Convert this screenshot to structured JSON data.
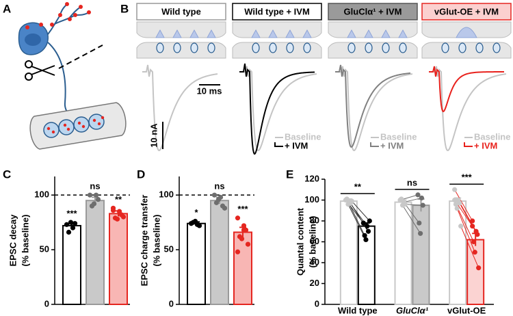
{
  "panel_labels": [
    "A",
    "B",
    "C",
    "D",
    "E"
  ],
  "traces": {
    "conditions": [
      "Wild type",
      "Wild type + IVM",
      "GluClα¹ + IVM",
      "vGlut-OE + IVM"
    ],
    "legend": [
      "Baseline",
      "+ IVM"
    ],
    "scale_bars": [
      "10 ms",
      "10 nA"
    ],
    "baseline_color": "#c4c4c4",
    "ivm_colors": [
      "#000000",
      "#808080",
      "#e8211c"
    ]
  },
  "chart_data": [
    {
      "type": "bar",
      "ylabel": [
        "EPSC decay",
        "(% baseline)"
      ],
      "categories": [
        null,
        null,
        null
      ],
      "ylim": [
        0,
        117
      ],
      "yticks": [
        0,
        50,
        100
      ],
      "reference_line": 100,
      "series": [
        {
          "values": [
            72,
            95,
            83
          ],
          "errors": [
            2,
            3,
            2.5
          ],
          "colors": [
            "#ffffff",
            "#c9c9c9",
            "#f8b6b4"
          ],
          "edge_colors": [
            "#000000",
            "#9a9a9a",
            "#e52620"
          ],
          "point_colors": [
            "#000000",
            "#6e6e6e",
            "#e52620"
          ],
          "points": [
            [
              73,
              70,
              74,
              66,
              75
            ],
            [
              100,
              100,
              96,
              90,
              92
            ],
            [
              88,
              85,
              82,
              79,
              78,
              80,
              86
            ]
          ]
        }
      ],
      "annotations": [
        "***",
        "ns",
        "**"
      ]
    },
    {
      "type": "bar",
      "ylabel": [
        "EPSC charge transfer",
        "(% baseline)"
      ],
      "categories": [
        null,
        null,
        null
      ],
      "ylim": [
        0,
        117
      ],
      "yticks": [
        0,
        50,
        100
      ],
      "reference_line": 100,
      "series": [
        {
          "values": [
            74,
            95,
            66
          ],
          "errors": [
            1.5,
            3,
            4.5
          ],
          "colors": [
            "#ffffff",
            "#c9c9c9",
            "#f8b6b4"
          ],
          "edge_colors": [
            "#000000",
            "#9a9a9a",
            "#e52620"
          ],
          "point_colors": [
            "#000000",
            "#6e6e6e",
            "#e52620"
          ],
          "points": [
            [
              74,
              73,
              72,
              75,
              76
            ],
            [
              100,
              98,
              90,
              93,
              96,
              88
            ],
            [
              79,
              72,
              68,
              62,
              60,
              55,
              48,
              68
            ]
          ]
        }
      ],
      "annotations": [
        "*",
        "ns",
        "***"
      ]
    },
    {
      "type": "bar",
      "ylabel": [
        "Quantal content",
        "(% baseline)"
      ],
      "categories": [
        "Wild type",
        "GluClα¹",
        "vGlut-OE"
      ],
      "category_italic": [
        false,
        true,
        false
      ],
      "ylim": [
        0,
        120
      ],
      "yticks": [
        0,
        20,
        40,
        60,
        80,
        100,
        120
      ],
      "series": [
        {
          "values": [
            99,
            98,
            99
          ],
          "errors": [
            2,
            2,
            3
          ],
          "colors": [
            "#ffffff",
            "#ffffff",
            "#ffffff"
          ],
          "edge_colors": [
            "#c8c8c8",
            "#c8c8c8",
            "#c8c8c8"
          ],
          "point_colors": [
            "#c8c8c8",
            "#c8c8c8",
            "#c8c8c8"
          ],
          "points": [
            [
              100,
              98,
              97,
              101,
              96,
              99
            ],
            [
              100,
              98,
              96,
              101,
              95
            ],
            [
              110,
              100,
              97,
              96,
              92,
              75,
              100
            ]
          ]
        },
        {
          "values": [
            75,
            95,
            62
          ],
          "errors": [
            3,
            6,
            6
          ],
          "colors": [
            "#ffffff",
            "#c9c9c9",
            "#fbd3d2"
          ],
          "edge_colors": [
            "#000000",
            "#9a9a9a",
            "#e52620"
          ],
          "point_colors": [
            "#000000",
            "#6e6e6e",
            "#e52620"
          ],
          "points": [
            [
              78,
              75,
              70,
              66,
              62,
              80
            ],
            [
              105,
              102,
              95,
              78,
              68
            ],
            [
              80,
              70,
              67,
              60,
              50,
              35,
              75
            ]
          ]
        }
      ],
      "annotations": [
        "**",
        "ns",
        "***"
      ]
    }
  ]
}
